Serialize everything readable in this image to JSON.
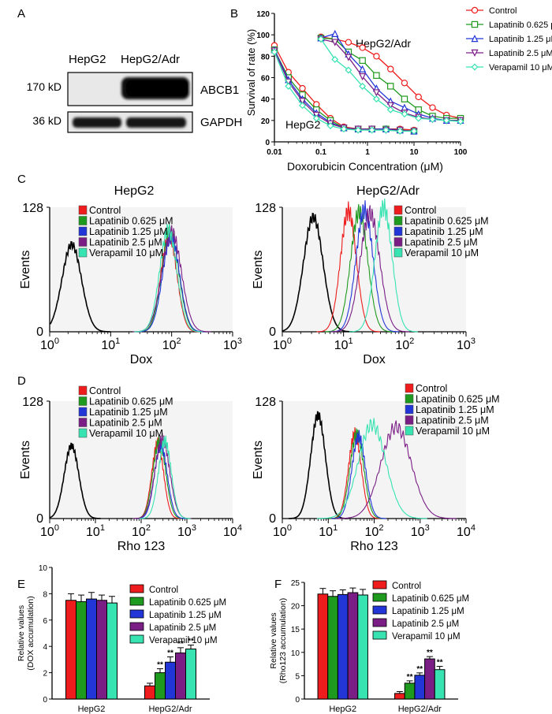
{
  "panel_letters": {
    "a": "A",
    "b": "B",
    "c": "C",
    "d": "D",
    "e": "E",
    "f": "F"
  },
  "blot": {
    "lane_labels": [
      "HepG2",
      "HepG2/Adr"
    ],
    "rows": [
      {
        "size": "170 kD",
        "protein": "ABCB1"
      },
      {
        "size": "36 kD",
        "protein": "GAPDH"
      }
    ]
  },
  "colors": {
    "control": "#ee1c1c",
    "lap0625": "#1e9a1e",
    "lap125": "#2236d8",
    "lap25": "#7a1e86",
    "vera": "#37e3b1",
    "blank": "#000000"
  },
  "legend_labels": [
    "Control",
    "Lapatinib 0.625 μM",
    "Lapatinib 1.25 μM",
    "Lapatinib 2.5 μM",
    "Verapamil 10 μM"
  ],
  "chart_data": [
    {
      "panel": "B",
      "type": "line",
      "x_scale": "log",
      "xlabel": "Doxorubicin Concentration (μM)",
      "ylabel": "Survival of rate (%)",
      "xlim": [
        0.01,
        100
      ],
      "ylim": [
        0,
        120
      ],
      "x_ticks": [
        "0.01",
        "0.1",
        "1",
        "10",
        "100"
      ],
      "y_ticks": [
        "0",
        "20",
        "40",
        "60",
        "80",
        "100",
        "120"
      ],
      "annotations": [
        "HepG2/Adr",
        "HepG2"
      ],
      "x_hepg2": [
        0.01,
        0.02,
        0.04,
        0.08,
        0.16,
        0.31,
        0.63,
        1.25,
        2.5,
        5,
        10
      ],
      "x_adr": [
        0.1,
        0.2,
        0.39,
        0.78,
        1.56,
        3.13,
        6.25,
        12.5,
        25,
        50,
        100
      ],
      "series": [
        {
          "name": "Control",
          "hepg2": [
            90,
            65,
            50,
            35,
            22,
            14,
            12,
            12,
            12,
            12,
            11
          ],
          "adr": [
            98,
            96,
            93,
            88,
            80,
            68,
            55,
            42,
            32,
            25,
            22
          ]
        },
        {
          "name": "Lapatinib 0.625 μM",
          "hepg2": [
            86,
            60,
            44,
            30,
            20,
            13,
            12,
            12,
            12,
            11,
            10
          ],
          "adr": [
            97,
            96,
            84,
            76,
            62,
            52,
            40,
            30,
            24,
            22,
            22
          ]
        },
        {
          "name": "Lapatinib 1.25 μM",
          "hepg2": [
            86,
            58,
            40,
            27,
            18,
            13,
            12,
            12,
            12,
            11,
            10
          ],
          "adr": [
            97,
            101,
            82,
            68,
            50,
            38,
            32,
            26,
            22,
            20,
            20
          ]
        },
        {
          "name": "Lapatinib 2.5 μM",
          "hepg2": [
            85,
            56,
            38,
            25,
            17,
            13,
            12,
            12,
            11,
            11,
            10
          ],
          "adr": [
            96,
            93,
            79,
            61,
            46,
            34,
            27,
            23,
            21,
            20,
            20
          ]
        },
        {
          "name": "Verapamil 10 μM",
          "hepg2": [
            84,
            52,
            34,
            22,
            15,
            12,
            11,
            11,
            11,
            10,
            10
          ],
          "adr": [
            96,
            77,
            67,
            52,
            40,
            30,
            26,
            22,
            21,
            20,
            19
          ]
        }
      ]
    },
    {
      "panel": "C-left",
      "type": "line",
      "title": "HepG2",
      "xlabel": "Dox",
      "ylabel": "Events",
      "x_scale": "log",
      "xlim": [
        1,
        1000
      ],
      "ylim": [
        0,
        128
      ],
      "y_ticks": [
        "0",
        "128"
      ],
      "x_tick_exponents": [
        "0",
        "1",
        "2",
        "3"
      ],
      "peaks": {
        "blank": 2.3,
        "series": [
          90,
          95,
          98,
          100,
          88
        ]
      },
      "peak_heights": {
        "blank": 0.7,
        "series": [
          0.78,
          0.8,
          0.76,
          0.8,
          0.82
        ]
      }
    },
    {
      "panel": "C-right",
      "type": "line",
      "title": "HepG2/Adr",
      "xlabel": "Dox",
      "ylabel": "Events",
      "x_scale": "log",
      "xlim": [
        1,
        1000
      ],
      "ylim": [
        0,
        128
      ],
      "y_ticks": [
        "0",
        "128"
      ],
      "x_tick_exponents": [
        "0",
        "1",
        "2",
        "3"
      ],
      "peaks": {
        "blank": 3.2,
        "series": [
          12,
          18,
          22,
          27,
          45
        ]
      },
      "peak_heights": {
        "blank": 0.92,
        "series": [
          0.97,
          0.96,
          0.98,
          0.95,
          1.0
        ]
      }
    },
    {
      "panel": "D-left",
      "type": "line",
      "xlabel": "Rho 123",
      "ylabel": "Events",
      "x_scale": "log",
      "xlim": [
        1,
        10000
      ],
      "ylim": [
        0,
        128
      ],
      "y_ticks": [
        "0",
        "128"
      ],
      "x_tick_exponents": [
        "0",
        "1",
        "2",
        "3",
        "4"
      ],
      "peaks": {
        "blank": 3.0,
        "series": [
          230,
          250,
          270,
          290,
          330
        ]
      },
      "peak_heights": {
        "blank": 0.62,
        "series": [
          0.64,
          0.66,
          0.62,
          0.68,
          0.66
        ]
      }
    },
    {
      "panel": "D-right",
      "type": "line",
      "xlabel": "Rho 123",
      "ylabel": "Events",
      "x_scale": "log",
      "xlim": [
        1,
        10000
      ],
      "ylim": [
        0,
        128
      ],
      "y_ticks": [
        "0",
        "128"
      ],
      "x_tick_exponents": [
        "0",
        "1",
        "2",
        "3",
        "4"
      ],
      "peaks": {
        "blank": 6.0,
        "series": [
          38,
          42,
          46,
          300,
          90
        ]
      },
      "peak_heights": {
        "blank": 0.88,
        "series": [
          0.72,
          0.72,
          0.7,
          0.78,
          0.8
        ]
      }
    },
    {
      "panel": "E",
      "type": "bar",
      "ylabel": "Relative values",
      "ylabel2": "(DOX accumulation)",
      "ylim": [
        0,
        10
      ],
      "y_ticks": [
        "0",
        "2",
        "4",
        "6",
        "8",
        "10"
      ],
      "categories": [
        "HepG2",
        "HepG2/Adr"
      ],
      "series": [
        {
          "name": "Control",
          "values": [
            7.5,
            1.0
          ],
          "errors": [
            0.5,
            0.2
          ]
        },
        {
          "name": "Lapatinib 0.625 μM",
          "values": [
            7.4,
            2.0
          ],
          "errors": [
            0.5,
            0.3
          ]
        },
        {
          "name": "Lapatinib 1.25 μM",
          "values": [
            7.6,
            2.8
          ],
          "errors": [
            0.5,
            0.4
          ]
        },
        {
          "name": "Lapatinib 2.5 μM",
          "values": [
            7.5,
            3.5
          ],
          "errors": [
            0.4,
            0.4
          ]
        },
        {
          "name": "Verapamil 10 μM",
          "values": [
            7.3,
            3.8
          ],
          "errors": [
            0.5,
            0.3
          ]
        }
      ],
      "significance": [
        "",
        "**",
        "**",
        "**",
        "**"
      ]
    },
    {
      "panel": "F",
      "type": "bar",
      "ylabel": "Relative values",
      "ylabel2": "(Rho123 accumulation)",
      "ylim": [
        0,
        25
      ],
      "y_ticks": [
        "0",
        "5",
        "10",
        "15",
        "20",
        "25"
      ],
      "categories": [
        "HepG2",
        "HepG2/Adr"
      ],
      "series": [
        {
          "name": "Control",
          "values": [
            22.5,
            1.2
          ],
          "errors": [
            1.2,
            0.4
          ]
        },
        {
          "name": "Lapatinib 0.625 μM",
          "values": [
            22.0,
            3.4
          ],
          "errors": [
            1.2,
            0.5
          ]
        },
        {
          "name": "Lapatinib 1.25 μM",
          "values": [
            22.4,
            5.1
          ],
          "errors": [
            1.0,
            0.5
          ]
        },
        {
          "name": "Lapatinib 2.5 μM",
          "values": [
            22.8,
            8.6
          ],
          "errors": [
            1.0,
            0.5
          ]
        },
        {
          "name": "Verapamil 10 μM",
          "values": [
            22.3,
            6.3
          ],
          "errors": [
            1.2,
            0.7
          ]
        }
      ],
      "significance": [
        "",
        "**",
        "**",
        "**",
        "**"
      ]
    }
  ]
}
